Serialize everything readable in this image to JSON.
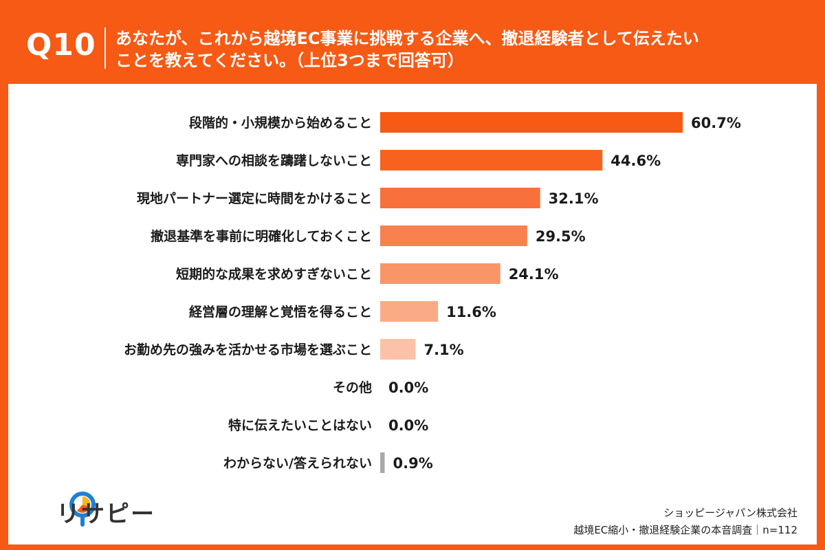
{
  "header": {
    "question_no": "Q10",
    "question_line1": "あなたが、これから越境EC事業に挑戦する企業へ、撤退経験者として伝えたい",
    "question_line2": "ことを教えてください。（上位3つまで回答可）"
  },
  "brand": {
    "logo_text": "リサピー",
    "accent_color": "#f65a14"
  },
  "footer": {
    "company": "ショッピージャパン株式会社",
    "survey": "越境EC縮小・撤退経験企業の本音調査｜n=112"
  },
  "chart_data": {
    "type": "bar",
    "orientation": "horizontal",
    "categories": [
      "段階的・小規模から始めること",
      "専門家への相談を躊躇しないこと",
      "現地パートナー選定に時間をかけること",
      "撤退基準を事前に明確化しておくこと",
      "短期的な成果を求めすぎないこと",
      "経営層の理解と覚悟を得ること",
      "お勤め先の強みを活かせる市場を選ぶこと",
      "その他",
      "特に伝えたいことはない",
      "わからない/答えられない"
    ],
    "values": [
      60.7,
      44.6,
      32.1,
      29.5,
      24.1,
      11.6,
      7.1,
      0.0,
      0.0,
      0.9
    ],
    "value_labels": [
      "60.7%",
      "44.6%",
      "32.1%",
      "29.5%",
      "24.1%",
      "11.6%",
      "7.1%",
      "0.0%",
      "0.0%",
      "0.9%"
    ],
    "colors": [
      "#f65a14",
      "#f7631f",
      "#f8703a",
      "#f9804f",
      "#fa9567",
      "#fbaa86",
      "#fcc2a8",
      "#fcc2a8",
      "#fcc2a8",
      "#aaaaaa"
    ],
    "xlim": [
      0,
      100
    ],
    "grid": false,
    "legend": "none"
  }
}
